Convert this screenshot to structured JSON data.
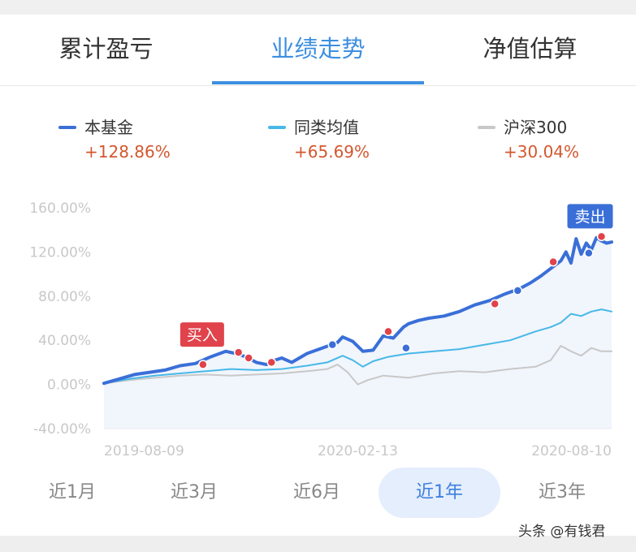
{
  "tabs": [
    {
      "label": "累计盈亏",
      "active": false
    },
    {
      "label": "业绩走势",
      "active": true
    },
    {
      "label": "净值估算",
      "active": false
    }
  ],
  "legend": [
    {
      "name": "本基金",
      "value": "+128.86%",
      "color": "#3a6fd8"
    },
    {
      "name": "同类均值",
      "value": "+65.69%",
      "color": "#47b8e8"
    },
    {
      "name": "沪深300",
      "value": "+30.04%",
      "color": "#c8c8c8"
    }
  ],
  "chart_data": {
    "type": "line",
    "x_ticks": [
      "2019-08-09",
      "2020-02-13",
      "2020-08-10"
    ],
    "y_ticks": [
      "160.00%",
      "120.00%",
      "80.00%",
      "40.00%",
      "0.00%",
      "-40.00%"
    ],
    "ylim": [
      -40,
      160
    ],
    "x_range": [
      0,
      1
    ],
    "series": [
      {
        "name": "本基金",
        "color": "#3a6fd8",
        "x": [
          0,
          0.03,
          0.06,
          0.09,
          0.12,
          0.15,
          0.18,
          0.21,
          0.24,
          0.26,
          0.28,
          0.3,
          0.32,
          0.33,
          0.35,
          0.37,
          0.4,
          0.43,
          0.46,
          0.47,
          0.49,
          0.51,
          0.53,
          0.55,
          0.57,
          0.59,
          0.6,
          0.62,
          0.64,
          0.67,
          0.7,
          0.73,
          0.76,
          0.79,
          0.82,
          0.84,
          0.86,
          0.88,
          0.9,
          0.91,
          0.92,
          0.93,
          0.94,
          0.95,
          0.96,
          0.97,
          0.98,
          0.99,
          1.0
        ],
        "y": [
          1,
          5,
          9,
          11,
          13,
          17,
          19,
          25,
          30,
          28,
          25,
          20,
          18,
          21,
          24,
          20,
          28,
          33,
          38,
          43,
          39,
          30,
          31,
          44,
          42,
          52,
          55,
          58,
          60,
          62,
          66,
          72,
          76,
          82,
          87,
          92,
          98,
          105,
          112,
          120,
          110,
          132,
          118,
          128,
          122,
          133,
          130,
          128,
          129
        ]
      },
      {
        "name": "同类均值",
        "color": "#47b8e8",
        "x": [
          0,
          0.05,
          0.1,
          0.15,
          0.2,
          0.25,
          0.3,
          0.35,
          0.4,
          0.44,
          0.47,
          0.49,
          0.51,
          0.53,
          0.56,
          0.6,
          0.65,
          0.7,
          0.75,
          0.8,
          0.85,
          0.88,
          0.9,
          0.92,
          0.94,
          0.96,
          0.98,
          1.0
        ],
        "y": [
          1,
          5,
          8,
          10,
          12,
          14,
          13,
          14,
          17,
          20,
          26,
          22,
          16,
          21,
          25,
          28,
          30,
          32,
          36,
          40,
          48,
          52,
          56,
          64,
          62,
          66,
          68,
          66
        ]
      },
      {
        "name": "沪深300",
        "color": "#c8c8c8",
        "x": [
          0,
          0.05,
          0.1,
          0.15,
          0.2,
          0.25,
          0.3,
          0.35,
          0.4,
          0.44,
          0.46,
          0.48,
          0.5,
          0.52,
          0.55,
          0.6,
          0.65,
          0.7,
          0.75,
          0.8,
          0.85,
          0.88,
          0.9,
          0.92,
          0.94,
          0.96,
          0.98,
          1.0
        ],
        "y": [
          1,
          4,
          6,
          8,
          9,
          8,
          9,
          10,
          12,
          14,
          18,
          11,
          0,
          4,
          8,
          6,
          10,
          12,
          11,
          14,
          16,
          22,
          35,
          30,
          26,
          33,
          30,
          30
        ]
      }
    ],
    "buy_points": [
      [
        0.195,
        18
      ],
      [
        0.265,
        29
      ],
      [
        0.285,
        24
      ],
      [
        0.33,
        20
      ],
      [
        0.56,
        48
      ],
      [
        0.77,
        73
      ],
      [
        0.885,
        111
      ],
      [
        0.98,
        134
      ]
    ],
    "sell_points": [
      [
        0.45,
        36
      ],
      [
        0.595,
        33
      ],
      [
        0.815,
        85
      ],
      [
        0.955,
        119
      ]
    ],
    "annotations": {
      "buy": "买入",
      "sell": "卖出"
    }
  },
  "periods": [
    {
      "label": "近1月",
      "active": false
    },
    {
      "label": "近3月",
      "active": false
    },
    {
      "label": "近6月",
      "active": false
    },
    {
      "label": "近1年",
      "active": true
    },
    {
      "label": "近3年",
      "active": false
    }
  ],
  "watermark": "头条 @有钱君"
}
